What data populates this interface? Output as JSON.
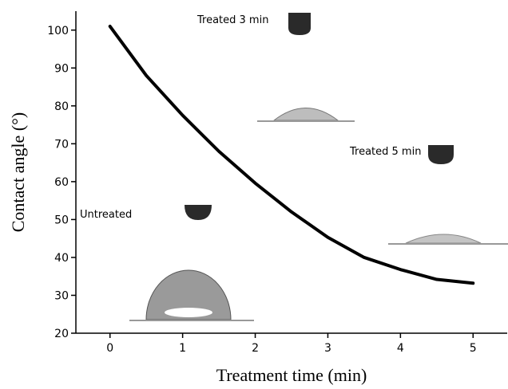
{
  "chart_data": {
    "type": "line",
    "x_label": "Treatment time (min)",
    "y_label": "Contact angle (°)",
    "annotations": [
      "Treated 3 min",
      "Treated 5 min",
      "Untreated"
    ],
    "x": [
      0,
      0.5,
      1,
      1.5,
      2,
      2.5,
      3,
      3.5,
      4,
      4.5,
      5
    ],
    "series": [
      {
        "color": "#000000",
        "values": [
          101,
          88,
          77.5,
          68,
          59.6,
          52,
          45.3,
          40,
          36.8,
          34.2,
          33.2
        ]
      }
    ],
    "xlim": [
      -0.47,
      5.47
    ],
    "xticks": [
      0,
      1,
      2,
      3,
      4,
      5
    ],
    "ylim": [
      20,
      105
    ],
    "yticks": [
      20,
      30,
      40,
      50,
      60,
      70,
      80,
      90,
      100
    ]
  }
}
